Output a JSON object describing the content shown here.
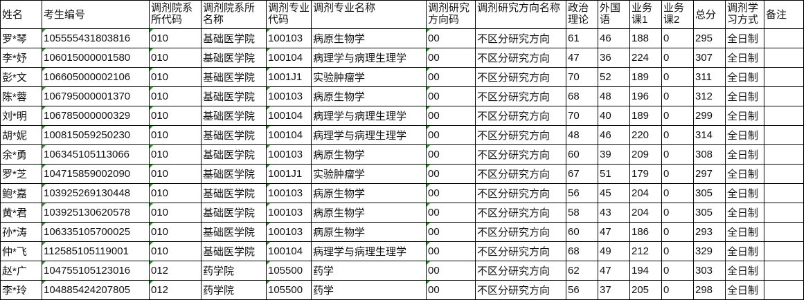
{
  "colors": {
    "grid": "#000000",
    "text_marker": "#1a9c1a"
  },
  "headers": [
    "姓名",
    "考生编号",
    "调剂院系所代码",
    "调剂院系所名称",
    "调剂专业代码",
    "调剂专业名称",
    "调剂研究方向码",
    "调剂研究方向名称",
    "政治理论",
    "外国语",
    "业务课1",
    "业务课2",
    "总分",
    "调剂学习方式",
    "备注"
  ],
  "rows": [
    [
      "罗*琴",
      "105555431803816",
      "010",
      "基础医学院",
      "100103",
      "病原生物学",
      "00",
      "不区分研究方向",
      "61",
      "46",
      "188",
      "0",
      "295",
      "全日制",
      ""
    ],
    [
      "李*妤",
      "106015000001580",
      "010",
      "基础医学院",
      "100104",
      "病理学与病理生理学",
      "00",
      "不区分研究方向",
      "47",
      "36",
      "224",
      "0",
      "307",
      "全日制",
      ""
    ],
    [
      "彭*文",
      "106605000002106",
      "010",
      "基础医学院",
      "1001J1",
      "实验肿瘤学",
      "00",
      "不区分研究方向",
      "70",
      "52",
      "189",
      "0",
      "311",
      "全日制",
      ""
    ],
    [
      "陈*蓉",
      "106795000001370",
      "010",
      "基础医学院",
      "100103",
      "病原生物学",
      "00",
      "不区分研究方向",
      "68",
      "48",
      "196",
      "0",
      "312",
      "全日制",
      ""
    ],
    [
      "刘*明",
      "106785000000329",
      "010",
      "基础医学院",
      "100104",
      "病理学与病理生理学",
      "00",
      "不区分研究方向",
      "70",
      "40",
      "189",
      "0",
      "299",
      "全日制",
      ""
    ],
    [
      "胡*妮",
      "100815059250230",
      "010",
      "基础医学院",
      "100104",
      "病理学与病理生理学",
      "00",
      "不区分研究方向",
      "48",
      "46",
      "220",
      "0",
      "314",
      "全日制",
      ""
    ],
    [
      "余*勇",
      "106345105113066",
      "010",
      "基础医学院",
      "100103",
      "病原生物学",
      "00",
      "不区分研究方向",
      "60",
      "39",
      "209",
      "0",
      "308",
      "全日制",
      ""
    ],
    [
      "罗*芝",
      "104715859002090",
      "010",
      "基础医学院",
      "1001J1",
      "实验肿瘤学",
      "00",
      "不区分研究方向",
      "67",
      "51",
      "179",
      "0",
      "297",
      "全日制",
      ""
    ],
    [
      "鲍*嘉",
      "103925269130448",
      "010",
      "基础医学院",
      "100103",
      "病原生物学",
      "00",
      "不区分研究方向",
      "56",
      "45",
      "204",
      "0",
      "305",
      "全日制",
      ""
    ],
    [
      "黄*君",
      "103925130620578",
      "010",
      "基础医学院",
      "100103",
      "病原生物学",
      "00",
      "不区分研究方向",
      "58",
      "43",
      "204",
      "0",
      "305",
      "全日制",
      ""
    ],
    [
      "孙*涛",
      "106335105700025",
      "010",
      "基础医学院",
      "100103",
      "病原生物学",
      "00",
      "不区分研究方向",
      "60",
      "47",
      "186",
      "0",
      "293",
      "全日制",
      ""
    ],
    [
      "仲*飞",
      "112585105119001",
      "010",
      "基础医学院",
      "100104",
      "病理学与病理生理学",
      "00",
      "不区分研究方向",
      "68",
      "49",
      "212",
      "0",
      "329",
      "全日制",
      ""
    ],
    [
      "赵*广",
      "104755105123016",
      "012",
      "药学院",
      "105500",
      "药学",
      "00",
      "不区分研究方向",
      "62",
      "47",
      "194",
      "0",
      "303",
      "全日制",
      ""
    ],
    [
      "李*玲",
      "104885424207805",
      "012",
      "药学院",
      "105500",
      "药学",
      "00",
      "不区分研究方向",
      "56",
      "37",
      "205",
      "0",
      "298",
      "全日制",
      ""
    ]
  ]
}
